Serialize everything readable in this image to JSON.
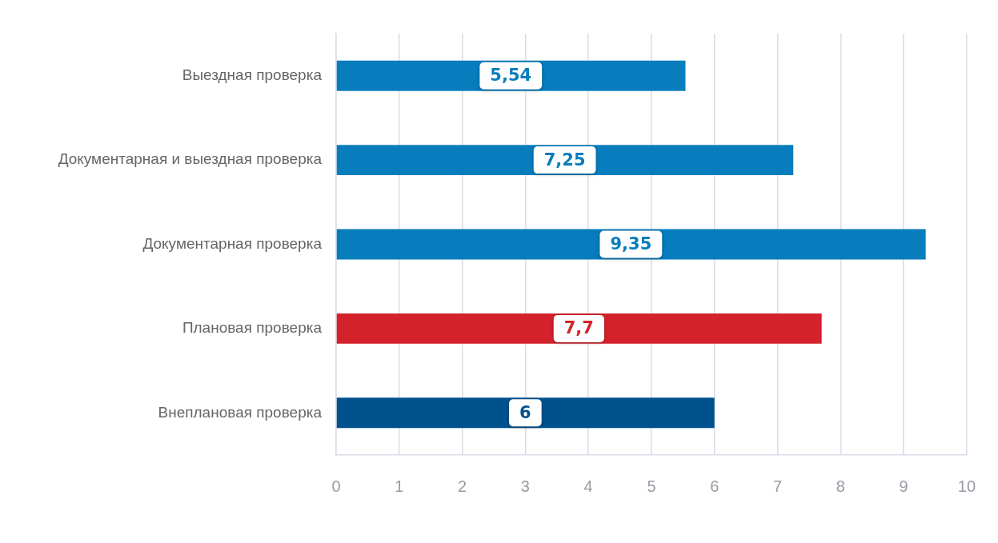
{
  "chart_data": {
    "type": "bar",
    "orientation": "horizontal",
    "categories": [
      "Выездная проверка",
      "Документарная и выездная проверка",
      "Документарная проверка",
      "Плановая проверка",
      "Внеплановая проверка"
    ],
    "values": [
      5.54,
      7.25,
      9.35,
      7.7,
      6
    ],
    "colors": [
      "#077dbd",
      "#077dbd",
      "#077dbd",
      "#d4222b",
      "#00528f"
    ],
    "value_labels": [
      "5,54",
      "7,25",
      "9,35",
      "7,7",
      "6"
    ],
    "xlim": [
      0,
      10
    ],
    "xticks": [
      0,
      1,
      2,
      3,
      4,
      5,
      6,
      7,
      8,
      9,
      10
    ],
    "grid": "x"
  }
}
